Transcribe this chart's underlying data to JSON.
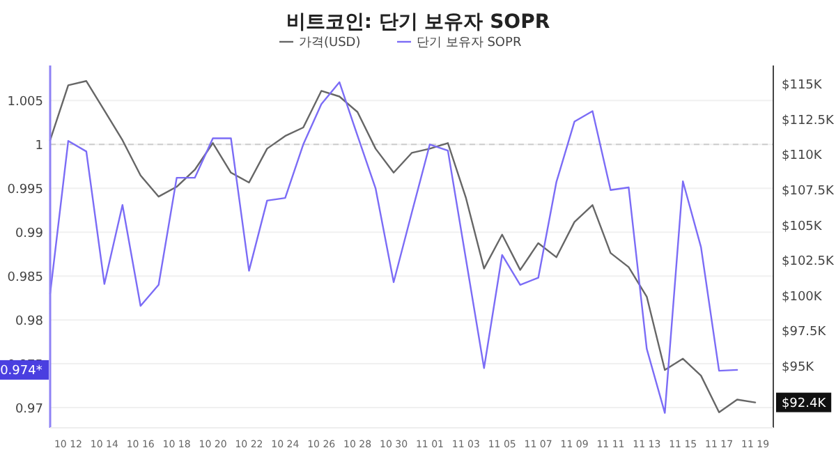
{
  "chart_data": {
    "type": "line",
    "title": "비트코인: 단기 보유자 SOPR",
    "legend": "top",
    "grid": "y",
    "marker": "none",
    "line_style": "solid",
    "x": [
      "--10-11",
      "--10-12",
      "--10-13",
      "--10-14",
      "--10-15",
      "--10-16",
      "--10-17",
      "--10-18",
      "--10-19",
      "--10-20",
      "--10-21",
      "--10-22",
      "--10-23",
      "--10-24",
      "--10-25",
      "--10-26",
      "--10-27",
      "--10-28",
      "--10-29",
      "--10-30",
      "--10-31",
      "--11-01",
      "--11-02",
      "--11-03",
      "--11-04",
      "--11-05",
      "--11-06",
      "--11-07",
      "--11-08",
      "--11-09",
      "--11-10",
      "--11-11",
      "--11-12",
      "--11-13",
      "--11-14",
      "--11-15",
      "--11-16",
      "--11-17",
      "--11-18",
      "--11-19"
    ],
    "series": [
      {
        "name": "가격(USD)",
        "color": "#666666",
        "axis": "y2",
        "values": [
          111000,
          114900,
          115200,
          113100,
          111000,
          108500,
          107000,
          107700,
          108900,
          110800,
          108700,
          108000,
          110400,
          111300,
          111900,
          114500,
          114100,
          113000,
          110400,
          108700,
          110100,
          110400,
          110800,
          106900,
          101900,
          104300,
          101800,
          103700,
          102700,
          105200,
          106400,
          103000,
          102000,
          99900,
          94700,
          95500,
          94300,
          91700,
          92600,
          92400
        ]
      },
      {
        "name": "단기 보유자 SOPR",
        "color": "#7b6cf6",
        "values": [
          0.983,
          1.0004,
          0.9992,
          0.9841,
          0.9931,
          0.9816,
          0.984,
          0.9962,
          0.9962,
          1.0007,
          1.0007,
          0.9856,
          0.9936,
          0.9939,
          1.0,
          1.0046,
          1.0071,
          1.001,
          0.995,
          0.9843,
          0.9922,
          1.0,
          0.9993,
          0.9869,
          0.9745,
          0.9874,
          0.984,
          0.9848,
          0.9957,
          1.0026,
          1.0038,
          0.9948,
          0.9951,
          0.9767,
          0.9694,
          0.9958,
          0.9883,
          0.9742,
          0.9743,
          null
        ]
      }
    ],
    "xlim": [
      "--10-11",
      "--11-20"
    ],
    "xticks": [
      {
        "value": "--10-12",
        "label": "10 12"
      },
      {
        "value": "--10-14",
        "label": "10 14"
      },
      {
        "value": "--10-16",
        "label": "10 16"
      },
      {
        "value": "--10-18",
        "label": "10 18"
      },
      {
        "value": "--10-20",
        "label": "10 20"
      },
      {
        "value": "--10-22",
        "label": "10 22"
      },
      {
        "value": "--10-24",
        "label": "10 24"
      },
      {
        "value": "--10-26",
        "label": "10 26"
      },
      {
        "value": "--10-28",
        "label": "10 28"
      },
      {
        "value": "--10-30",
        "label": "10 30"
      },
      {
        "value": "--11-01",
        "label": "11 01"
      },
      {
        "value": "--11-03",
        "label": "11 03"
      },
      {
        "value": "--11-05",
        "label": "11 05"
      },
      {
        "value": "--11-07",
        "label": "11 07"
      },
      {
        "value": "--11-09",
        "label": "11 09"
      },
      {
        "value": "--11-11",
        "label": "11 11"
      },
      {
        "value": "--11-13",
        "label": "11 13"
      },
      {
        "value": "--11-15",
        "label": "11 15"
      },
      {
        "value": "--11-17",
        "label": "11 17"
      },
      {
        "value": "--11-19",
        "label": "11 19"
      }
    ],
    "ylim": [
      0.9677,
      1.009
    ],
    "yticks": [
      0.97,
      0.975,
      0.98,
      0.985,
      0.99,
      0.995,
      1,
      1.005
    ],
    "y2lim": [
      90600,
      116300
    ],
    "y2ticks": [
      {
        "value": 95000,
        "label": "$95K"
      },
      {
        "value": 97500,
        "label": "$97.5K"
      },
      {
        "value": 100000,
        "label": "$100K"
      },
      {
        "value": 102500,
        "label": "$102.5K"
      },
      {
        "value": 105000,
        "label": "$105K"
      },
      {
        "value": 107500,
        "label": "$107.5K"
      },
      {
        "value": 110000,
        "label": "$110K"
      },
      {
        "value": 112500,
        "label": "$112.5K"
      },
      {
        "value": 115000,
        "label": "$115K"
      }
    ],
    "ref_lines": [
      {
        "axis": "y",
        "value": 1,
        "color": "#cccccc",
        "line_style": "dashed"
      }
    ],
    "annotations": [
      "0.974*",
      "$92.4K"
    ]
  }
}
